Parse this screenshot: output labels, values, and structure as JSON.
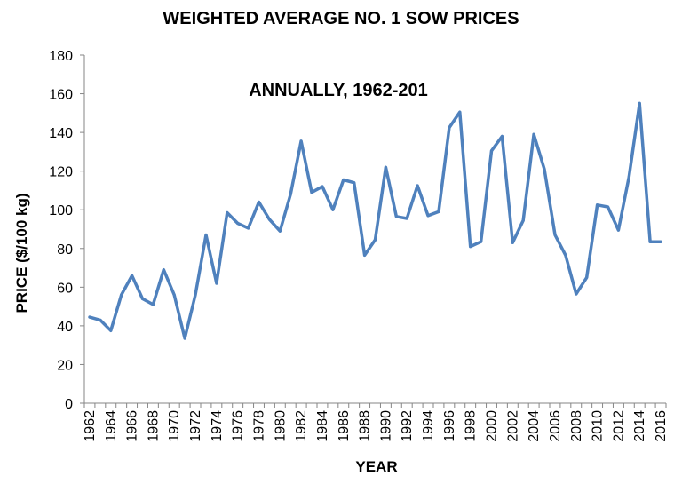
{
  "chart_data": {
    "type": "line",
    "title": "WEIGHTED AVERAGE NO. 1 SOW PRICES",
    "subtitle": "ANNUALLY, 1962-201",
    "xlabel": "YEAR",
    "ylabel": "PRICE ($/100 kg)",
    "ylim": [
      0,
      180
    ],
    "yticks": [
      0,
      20,
      40,
      60,
      80,
      100,
      120,
      140,
      160,
      180
    ],
    "xticks": [
      1962,
      1964,
      1966,
      1968,
      1970,
      1972,
      1974,
      1976,
      1978,
      1980,
      1982,
      1984,
      1986,
      1988,
      1990,
      1992,
      1994,
      1996,
      1998,
      2000,
      2002,
      2004,
      2006,
      2008,
      2010,
      2012,
      2014,
      2016
    ],
    "grid": false,
    "legend": "none",
    "x": [
      1962,
      1963,
      1964,
      1965,
      1966,
      1967,
      1968,
      1969,
      1970,
      1971,
      1972,
      1973,
      1974,
      1975,
      1976,
      1977,
      1978,
      1979,
      1980,
      1981,
      1982,
      1983,
      1984,
      1985,
      1986,
      1987,
      1988,
      1989,
      1990,
      1991,
      1992,
      1993,
      1994,
      1995,
      1996,
      1997,
      1998,
      1999,
      2000,
      2001,
      2002,
      2003,
      2004,
      2005,
      2006,
      2007,
      2008,
      2009,
      2010,
      2011,
      2012,
      2013,
      2014,
      2015,
      2016
    ],
    "series": [
      {
        "color": "#4F81BD",
        "values": [
          44.5,
          43,
          37.5,
          56,
          66,
          54,
          51,
          69,
          56,
          33.5,
          56,
          87,
          62,
          98.5,
          93,
          90.5,
          104,
          95,
          89,
          108,
          135.5,
          109,
          112,
          100,
          115.5,
          114,
          76.5,
          84.5,
          122,
          96.5,
          95.5,
          112.5,
          97,
          99,
          142.5,
          150.5,
          81,
          83.5,
          130.5,
          138,
          83,
          94.5,
          139,
          121,
          87,
          76.5,
          56.5,
          65,
          102.5,
          101.5,
          89.5,
          117,
          155,
          83.5,
          83.5
        ]
      }
    ]
  }
}
